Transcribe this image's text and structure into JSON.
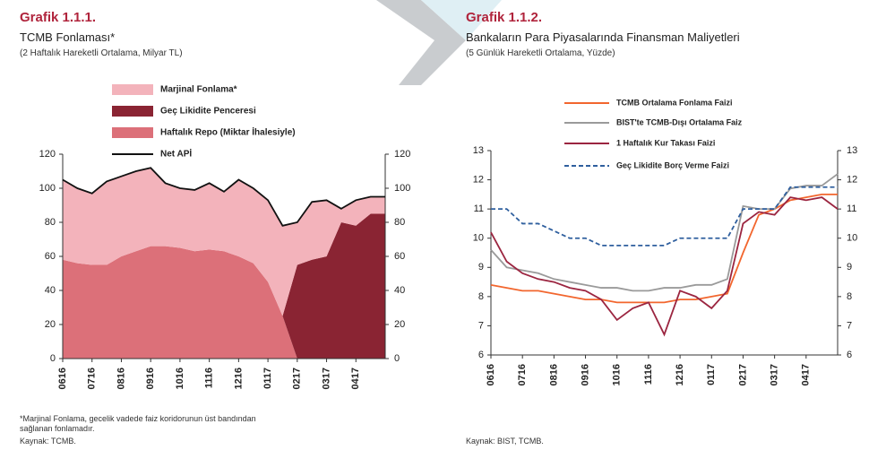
{
  "chart_data": [
    {
      "type": "stacked_area",
      "figure": "Grafik 1.1.1.",
      "title": "TCMB Fonlaması*",
      "subtitle": "(2 Haftalık Hareketli Ortalama, Milyar TL)",
      "note": [
        "*Marjinal Fonlama, gecelik vadede faiz koridorunun üst bandından",
        "sağlanan fonlamadır."
      ],
      "source": "Kaynak: TCMB.",
      "categories": [
        "0616",
        null,
        "0716",
        null,
        "0816",
        null,
        "0916",
        null,
        "1016",
        null,
        "1116",
        null,
        "1216",
        null,
        "0117",
        null,
        "0217",
        null,
        "0317",
        null,
        "0417",
        null,
        null
      ],
      "series": [
        {
          "name": "Haftalık Repo (Miktar İhalesiyle)",
          "color": "#dc7079",
          "values": [
            58,
            56,
            55,
            55,
            60,
            63,
            66,
            66,
            65,
            63,
            64,
            63,
            60,
            56,
            45,
            25,
            0,
            0,
            0,
            0,
            0,
            0,
            0
          ]
        },
        {
          "name": "Geç Likidite Penceresi",
          "color": "#8a2433",
          "values": [
            0,
            0,
            0,
            0,
            0,
            0,
            0,
            0,
            0,
            0,
            0,
            0,
            0,
            0,
            0,
            0,
            55,
            58,
            60,
            80,
            78,
            85,
            85
          ]
        },
        {
          "name": "Marjinal Fonlama*",
          "color": "#f3b3bb",
          "values": [
            47,
            44,
            42,
            49,
            47,
            47,
            46,
            37,
            35,
            36,
            39,
            35,
            45,
            44,
            48,
            53,
            25,
            34,
            33,
            8,
            15,
            10,
            10
          ]
        },
        {
          "name": "Net APİ",
          "color": "#111111",
          "kind": "line",
          "values": [
            105,
            100,
            97,
            104,
            107,
            110,
            112,
            103,
            100,
            99,
            103,
            98,
            105,
            100,
            93,
            78,
            80,
            92,
            93,
            88,
            93,
            95,
            95
          ]
        }
      ],
      "ylim": [
        0,
        120
      ],
      "yticks": [
        0,
        20,
        40,
        60,
        80,
        100,
        120
      ],
      "y2lim": [
        0,
        120
      ],
      "y2ticks": [
        0,
        20,
        40,
        60,
        80,
        100,
        120
      ]
    },
    {
      "type": "line",
      "figure": "Grafik 1.1.2.",
      "title": "Bankaların Para Piyasalarında Finansman Maliyetleri",
      "subtitle": "(5 Günlük Hareketli Ortalama, Yüzde)",
      "source": "Kaynak: BIST, TCMB.",
      "categories": [
        "0616",
        null,
        "0716",
        null,
        "0816",
        null,
        "0916",
        null,
        "1016",
        null,
        "1116",
        null,
        "1216",
        null,
        "0117",
        null,
        "0217",
        null,
        "0317",
        null,
        "0417",
        null,
        null
      ],
      "series": [
        {
          "name": "TCMB Ortalama Fonlama Faizi",
          "color": "#f2662e",
          "values": [
            8.4,
            8.3,
            8.2,
            8.2,
            8.1,
            8.0,
            7.9,
            7.9,
            7.8,
            7.8,
            7.8,
            7.8,
            7.9,
            7.9,
            8.0,
            8.1,
            9.5,
            10.8,
            11.0,
            11.3,
            11.4,
            11.5,
            11.5
          ]
        },
        {
          "name": "BIST'te TCMB-Dışı Ortalama Faiz",
          "color": "#9a9a9a",
          "values": [
            9.6,
            9.0,
            8.9,
            8.8,
            8.6,
            8.5,
            8.4,
            8.3,
            8.3,
            8.2,
            8.2,
            8.3,
            8.3,
            8.4,
            8.4,
            8.6,
            11.1,
            11.0,
            11.0,
            11.7,
            11.8,
            11.8,
            12.2
          ]
        },
        {
          "name": "1 Haftalık Kur Takası Faizi",
          "color": "#9b2540",
          "values": [
            10.2,
            9.2,
            8.8,
            8.6,
            8.5,
            8.3,
            8.2,
            7.9,
            7.2,
            7.6,
            7.8,
            6.7,
            8.2,
            8.0,
            7.6,
            8.2,
            10.5,
            10.9,
            10.8,
            11.4,
            11.3,
            11.4,
            11.0
          ]
        },
        {
          "name": "Geç Likidite Borç Verme Faizi",
          "color": "#2f5f9e",
          "dash": true,
          "values": [
            11,
            11,
            10.5,
            10.5,
            10.25,
            10,
            10,
            9.75,
            9.75,
            9.75,
            9.75,
            9.75,
            10,
            10,
            10,
            10,
            11,
            11,
            11,
            11.75,
            11.75,
            11.75,
            11.75
          ]
        }
      ],
      "ylim": [
        6,
        13
      ],
      "yticks": [
        6,
        7,
        8,
        9,
        10,
        11,
        12,
        13
      ],
      "y2lim": [
        6,
        13
      ],
      "y2ticks": [
        6,
        7,
        8,
        9,
        10,
        11,
        12,
        13
      ]
    }
  ]
}
